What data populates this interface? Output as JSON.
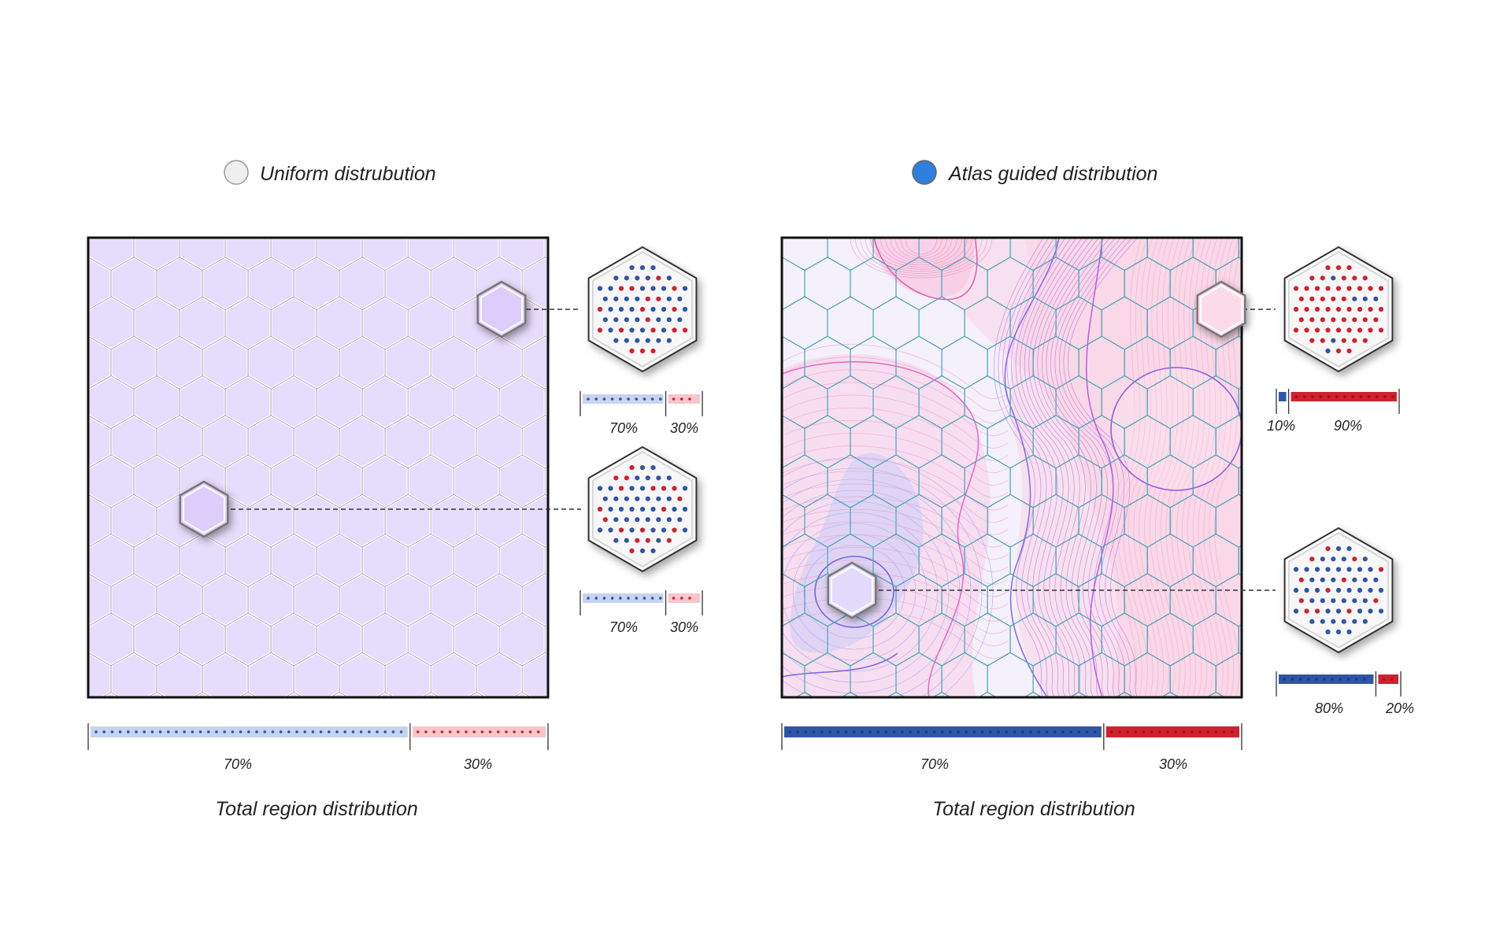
{
  "colors": {
    "blue": "#2f55a6",
    "red": "#d0212e",
    "lavender": "#e6dcfb",
    "radio_on": "#2f80de",
    "radio_off": "#efefef"
  },
  "left_panel": {
    "option_label": "Uniform distrubution",
    "option_selected": false,
    "insets": [
      {
        "blue_label": "70%",
        "red_label": "30%",
        "blue_fraction": 0.7,
        "red_fraction": 0.3
      },
      {
        "blue_label": "70%",
        "red_label": "30%",
        "blue_fraction": 0.7,
        "red_fraction": 0.3
      }
    ],
    "total": {
      "blue_label": "70%",
      "red_label": "30%",
      "blue_fraction": 0.7,
      "red_fraction": 0.3
    },
    "caption": "Total region distribution"
  },
  "right_panel": {
    "option_label": "Atlas guided distribution",
    "option_selected": true,
    "insets": [
      {
        "blue_label": "10%",
        "red_label": "90%",
        "blue_fraction": 0.1,
        "red_fraction": 0.9
      },
      {
        "blue_label": "80%",
        "red_label": "20%",
        "blue_fraction": 0.8,
        "red_fraction": 0.2
      }
    ],
    "total": {
      "blue_label": "70%",
      "red_label": "30%",
      "blue_fraction": 0.7,
      "red_fraction": 0.3
    },
    "caption": "Total region distribution"
  }
}
